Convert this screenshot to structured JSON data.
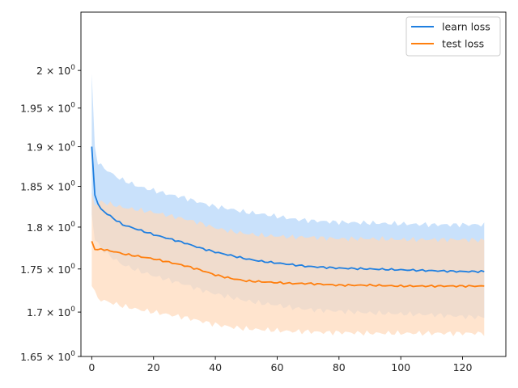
{
  "chart_data": {
    "type": "line",
    "title": "",
    "xlabel": "",
    "ylabel": "",
    "y_scale": "log",
    "xlim": [
      -3.5,
      134
    ],
    "ylim": [
      1.65,
      2.08
    ],
    "x_ticks": [
      0,
      20,
      40,
      60,
      80,
      100,
      120
    ],
    "y_ticks": [
      {
        "value": 1.65,
        "mantissa": "1.65",
        "base": "10",
        "exp": "0"
      },
      {
        "value": 1.7,
        "mantissa": "1.7",
        "base": "10",
        "exp": "0"
      },
      {
        "value": 1.75,
        "mantissa": "1.75",
        "base": "10",
        "exp": "0"
      },
      {
        "value": 1.8,
        "mantissa": "1.8",
        "base": "10",
        "exp": "0"
      },
      {
        "value": 1.85,
        "mantissa": "1.85",
        "base": "10",
        "exp": "0"
      },
      {
        "value": 1.9,
        "mantissa": "1.9",
        "base": "10",
        "exp": "0"
      },
      {
        "value": 1.95,
        "mantissa": "1.95",
        "base": "10",
        "exp": "0"
      },
      {
        "value": 2.0,
        "mantissa": "2",
        "base": "10",
        "exp": "0"
      }
    ],
    "grid": false,
    "legend_position": "top-right",
    "x_range": [
      0,
      127
    ],
    "series": [
      {
        "name": "learn loss",
        "color": "#1f7fe0",
        "band_color": "#c9e1fb",
        "keypoints_x": [
          0,
          1,
          2,
          3,
          5,
          8,
          10,
          15,
          20,
          25,
          30,
          35,
          40,
          45,
          50,
          55,
          60,
          65,
          70,
          75,
          80,
          90,
          100,
          110,
          120,
          127
        ],
        "mean": [
          1.9,
          1.84,
          1.828,
          1.822,
          1.816,
          1.808,
          1.803,
          1.797,
          1.791,
          1.786,
          1.781,
          1.775,
          1.77,
          1.766,
          1.762,
          1.759,
          1.757,
          1.755,
          1.753,
          1.752,
          1.751,
          1.75,
          1.749,
          1.748,
          1.747,
          1.747
        ],
        "upper": [
          1.996,
          1.9,
          1.88,
          1.876,
          1.87,
          1.862,
          1.858,
          1.85,
          1.845,
          1.84,
          1.836,
          1.83,
          1.825,
          1.822,
          1.818,
          1.816,
          1.813,
          1.81,
          1.808,
          1.807,
          1.806,
          1.805,
          1.804,
          1.803,
          1.803,
          1.803
        ],
        "lower": [
          1.815,
          1.785,
          1.78,
          1.775,
          1.768,
          1.76,
          1.755,
          1.748,
          1.742,
          1.737,
          1.732,
          1.726,
          1.721,
          1.717,
          1.713,
          1.71,
          1.708,
          1.705,
          1.703,
          1.702,
          1.701,
          1.699,
          1.698,
          1.697,
          1.695,
          1.694
        ]
      },
      {
        "name": "test loss",
        "color": "#ff7f0e",
        "band_color": "#ffd9bb",
        "keypoints_x": [
          0,
          1,
          2,
          3,
          5,
          8,
          10,
          15,
          20,
          25,
          30,
          35,
          40,
          45,
          50,
          55,
          60,
          65,
          70,
          75,
          80,
          90,
          100,
          110,
          120,
          127
        ],
        "mean": [
          1.783,
          1.774,
          1.772,
          1.774,
          1.772,
          1.77,
          1.768,
          1.765,
          1.762,
          1.758,
          1.754,
          1.749,
          1.743,
          1.739,
          1.736,
          1.735,
          1.734,
          1.733,
          1.733,
          1.732,
          1.731,
          1.731,
          1.73,
          1.73,
          1.73,
          1.73
        ],
        "upper": [
          1.842,
          1.827,
          1.829,
          1.831,
          1.829,
          1.826,
          1.824,
          1.821,
          1.818,
          1.814,
          1.81,
          1.805,
          1.799,
          1.795,
          1.792,
          1.79,
          1.789,
          1.788,
          1.788,
          1.787,
          1.786,
          1.786,
          1.785,
          1.785,
          1.785,
          1.784
        ],
        "lower": [
          1.73,
          1.722,
          1.716,
          1.714,
          1.712,
          1.709,
          1.707,
          1.703,
          1.7,
          1.697,
          1.694,
          1.69,
          1.686,
          1.683,
          1.681,
          1.68,
          1.679,
          1.678,
          1.678,
          1.677,
          1.677,
          1.676,
          1.676,
          1.676,
          1.676,
          1.676
        ]
      }
    ]
  }
}
